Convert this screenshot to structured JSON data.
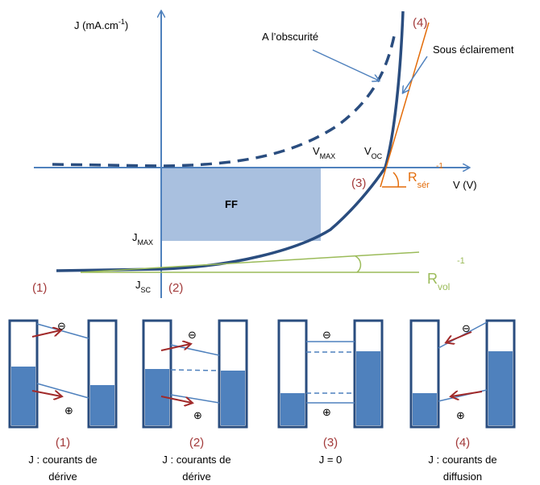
{
  "colors": {
    "axis": "#4f81bd",
    "curve": "#2a4d7f",
    "ff_fill": "#a9c0df",
    "orange": "#e36c09",
    "green": "#9bbb59",
    "red_label": "#a23a3a",
    "arrow_red": "#a12a2a",
    "panel_fill": "#4f81bd"
  },
  "graph": {
    "y_axis_label": "J (mA.cm",
    "y_axis_exp": "-1",
    "y_axis_close": ")",
    "x_axis_label": "V (V)",
    "dark_label": "A l’obscurité",
    "light_label": "Sous éclairement",
    "ff_label": "FF",
    "vmax_label": "V",
    "vmax_sub": "MAX",
    "voc_label": "V",
    "voc_sub": "OC",
    "jmax_label": "J",
    "jmax_sub": "MAX",
    "jsc_label": "J",
    "jsc_sub": "SC",
    "rser_label": "R",
    "rser_sub": "sér",
    "rser_exp": "-1",
    "rvol_label": "R",
    "rvol_sub": "vol",
    "rvol_exp": "-1",
    "point1": "(1)",
    "point2": "(2)",
    "point3": "(3)",
    "point4": "(4)"
  },
  "panels": [
    {
      "number": "(1)",
      "caption_line1": "J : courants de",
      "caption_line2": "dérive"
    },
    {
      "number": "(2)",
      "caption_line1": "J : courants de",
      "caption_line2": "dérive"
    },
    {
      "number": "(3)",
      "caption_line1": "J = 0",
      "caption_line2": ""
    },
    {
      "number": "(4)",
      "caption_line1": "J : courants de",
      "caption_line2": "diffusion"
    }
  ],
  "symbols": {
    "minus": "⊖",
    "plus": "⊕"
  }
}
